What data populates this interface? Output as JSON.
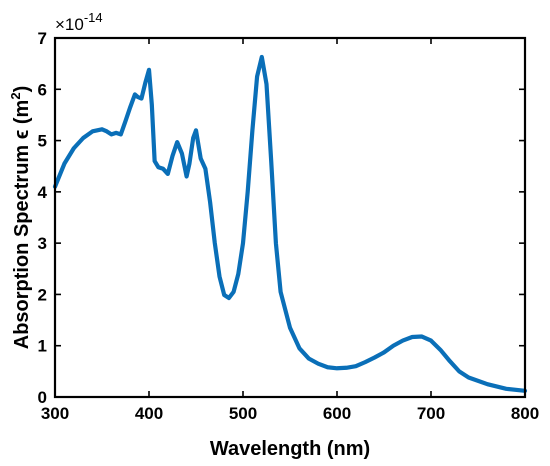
{
  "colors": {
    "series": "#0a6fb8",
    "axes": "#000000",
    "background": "#ffffff"
  },
  "chart_data": {
    "type": "line",
    "title": "",
    "xlabel": "Wavelength (nm)",
    "ylabel_main": "Absorption Spectrum ϵ (m",
    "ylabel_sup": "2",
    "ylabel_close": ")",
    "y_multiplier": "×10",
    "y_exponent": "-14",
    "xlim": [
      300,
      800
    ],
    "ylim": [
      0,
      7
    ],
    "xticks": [
      300,
      400,
      500,
      600,
      700,
      800
    ],
    "yticks": [
      0,
      1,
      2,
      3,
      4,
      5,
      6,
      7
    ],
    "grid": false,
    "legend": "none",
    "series": [
      {
        "x": [
          300,
          310,
          320,
          330,
          340,
          350,
          355,
          360,
          365,
          370,
          375,
          380,
          385,
          388,
          392,
          396,
          400,
          403,
          406,
          410,
          415,
          420,
          425,
          430,
          435,
          440,
          443,
          447,
          450,
          455,
          460,
          465,
          470,
          475,
          480,
          485,
          490,
          495,
          500,
          505,
          510,
          515,
          520,
          525,
          530,
          535,
          540,
          550,
          560,
          570,
          580,
          590,
          600,
          610,
          620,
          630,
          640,
          650,
          660,
          670,
          680,
          690,
          700,
          710,
          720,
          730,
          740,
          760,
          780,
          800
        ],
        "y": [
          4.1,
          4.55,
          4.85,
          5.05,
          5.18,
          5.22,
          5.18,
          5.12,
          5.15,
          5.12,
          5.38,
          5.65,
          5.9,
          5.85,
          5.82,
          6.12,
          6.38,
          5.7,
          4.6,
          4.48,
          4.45,
          4.35,
          4.7,
          4.97,
          4.75,
          4.3,
          4.55,
          5.05,
          5.2,
          4.65,
          4.45,
          3.8,
          3.0,
          2.35,
          1.99,
          1.93,
          2.05,
          2.4,
          3.0,
          4.0,
          5.2,
          6.25,
          6.63,
          6.1,
          4.6,
          3.0,
          2.05,
          1.35,
          0.95,
          0.75,
          0.65,
          0.58,
          0.56,
          0.57,
          0.6,
          0.68,
          0.77,
          0.87,
          1.0,
          1.1,
          1.17,
          1.18,
          1.1,
          0.92,
          0.7,
          0.5,
          0.38,
          0.25,
          0.16,
          0.12
        ]
      }
    ]
  }
}
